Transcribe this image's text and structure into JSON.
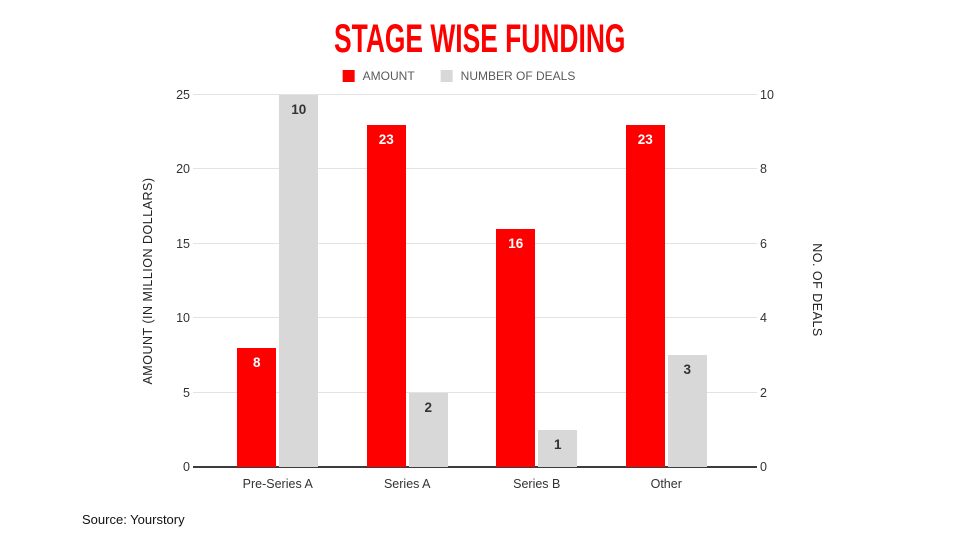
{
  "page": {
    "title": "STAGE WISE FUNDING",
    "source": "Source: Yourstory"
  },
  "colors": {
    "accent_red": "#ff0000",
    "bar_gray": "#d8d8d8",
    "gridline": "#e3e3e3",
    "axis_line": "#3c3c3c"
  },
  "legend": [
    {
      "label": "AMOUNT",
      "color": "#ff0000"
    },
    {
      "label": "NUMBER OF DEALS",
      "color": "#d8d8d8"
    }
  ],
  "chart_data": {
    "type": "bar",
    "title": "STAGE WISE FUNDING",
    "categories": [
      "Pre-Series A",
      "Series A",
      "Series B",
      "Other"
    ],
    "series": [
      {
        "name": "AMOUNT",
        "axis": "left",
        "color": "#ff0000",
        "values": [
          8,
          23,
          16,
          23
        ]
      },
      {
        "name": "NUMBER OF DEALS",
        "axis": "right",
        "color": "#d8d8d8",
        "values": [
          10,
          2,
          1,
          3
        ]
      }
    ],
    "left_axis": {
      "label": "AMOUNT (IN MILLION DOLLARS)",
      "ticks": [
        0,
        5,
        10,
        15,
        20,
        25
      ],
      "range": [
        0,
        25
      ]
    },
    "right_axis": {
      "label": "NO. OF DEALS",
      "ticks": [
        0,
        2,
        4,
        6,
        8,
        10
      ],
      "range": [
        0,
        10
      ]
    },
    "grid": true,
    "legend_position": "top",
    "source": "Source: Yourstory"
  }
}
